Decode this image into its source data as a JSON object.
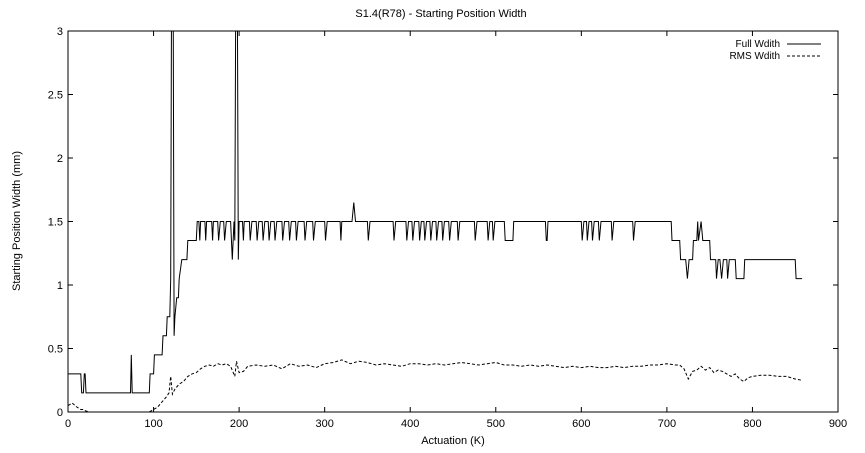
{
  "chart_data": {
    "type": "line",
    "title": "S1.4(R78) - Starting Position Width",
    "xlabel": "Actuation (K)",
    "ylabel": "Starting Position Width (mm)",
    "xlim": [
      0,
      900
    ],
    "ylim": [
      0,
      3
    ],
    "x_ticks": [
      0,
      100,
      200,
      300,
      400,
      500,
      600,
      700,
      800,
      900
    ],
    "y_ticks": [
      0,
      0.5,
      1,
      1.5,
      2,
      2.5,
      3
    ],
    "x_tick_labels": [
      "0",
      "100",
      "200",
      "300",
      "400",
      "500",
      "600",
      "700",
      "800",
      "900"
    ],
    "y_tick_labels": [
      "0",
      "0.5",
      "1",
      "1.5",
      "2",
      "2.5",
      "3"
    ],
    "grid": false,
    "legend_position": "top-right",
    "series": [
      {
        "name": "Full Wdith",
        "style": "solid",
        "color": "#000000",
        "points": [
          [
            0,
            0.3
          ],
          [
            15,
            0.3
          ],
          [
            16,
            0.15
          ],
          [
            18,
            0.15
          ],
          [
            19,
            0.3
          ],
          [
            20,
            0.3
          ],
          [
            21,
            0.15
          ],
          [
            73,
            0.15
          ],
          [
            74,
            0.45
          ],
          [
            75,
            0.15
          ],
          [
            95,
            0.15
          ],
          [
            96,
            0.3
          ],
          [
            100,
            0.3
          ],
          [
            101,
            0.45
          ],
          [
            110,
            0.45
          ],
          [
            111,
            0.6
          ],
          [
            115,
            0.6
          ],
          [
            116,
            0.75
          ],
          [
            119,
            0.75
          ],
          [
            120,
            1.05
          ],
          [
            121,
            3.2
          ],
          [
            123,
            3.2
          ],
          [
            124,
            0.6
          ],
          [
            125,
            0.75
          ],
          [
            127,
            0.9
          ],
          [
            129,
            0.9
          ],
          [
            130,
            1.05
          ],
          [
            133,
            1.2
          ],
          [
            139,
            1.2
          ],
          [
            140,
            1.35
          ],
          [
            150,
            1.35
          ],
          [
            151,
            1.5
          ],
          [
            153,
            1.5
          ],
          [
            154,
            1.35
          ],
          [
            155,
            1.5
          ],
          [
            160,
            1.5
          ],
          [
            161,
            1.35
          ],
          [
            162,
            1.5
          ],
          [
            168,
            1.5
          ],
          [
            169,
            1.35
          ],
          [
            170,
            1.5
          ],
          [
            175,
            1.5
          ],
          [
            176,
            1.35
          ],
          [
            178,
            1.5
          ],
          [
            182,
            1.5
          ],
          [
            183,
            1.35
          ],
          [
            185,
            1.5
          ],
          [
            190,
            1.5
          ],
          [
            192,
            1.2
          ],
          [
            194,
            1.5
          ],
          [
            195,
            1.35
          ],
          [
            196,
            3.2
          ],
          [
            198,
            3.2
          ],
          [
            199,
            1.2
          ],
          [
            200,
            1.5
          ],
          [
            204,
            1.5
          ],
          [
            205,
            1.35
          ],
          [
            206,
            1.5
          ],
          [
            212,
            1.5
          ],
          [
            213,
            1.35
          ],
          [
            215,
            1.5
          ],
          [
            220,
            1.5
          ],
          [
            221,
            1.35
          ],
          [
            223,
            1.5
          ],
          [
            227,
            1.5
          ],
          [
            228,
            1.35
          ],
          [
            230,
            1.5
          ],
          [
            234,
            1.5
          ],
          [
            235,
            1.35
          ],
          [
            237,
            1.5
          ],
          [
            241,
            1.5
          ],
          [
            242,
            1.35
          ],
          [
            244,
            1.5
          ],
          [
            250,
            1.5
          ],
          [
            251,
            1.35
          ],
          [
            253,
            1.5
          ],
          [
            258,
            1.5
          ],
          [
            259,
            1.35
          ],
          [
            261,
            1.5
          ],
          [
            266,
            1.5
          ],
          [
            267,
            1.35
          ],
          [
            269,
            1.5
          ],
          [
            276,
            1.5
          ],
          [
            277,
            1.35
          ],
          [
            279,
            1.5
          ],
          [
            286,
            1.5
          ],
          [
            287,
            1.35
          ],
          [
            289,
            1.5
          ],
          [
            300,
            1.5
          ],
          [
            301,
            1.35
          ],
          [
            303,
            1.5
          ],
          [
            318,
            1.5
          ],
          [
            319,
            1.35
          ],
          [
            320,
            1.5
          ],
          [
            330,
            1.5
          ],
          [
            332,
            1.5
          ],
          [
            334,
            1.65
          ],
          [
            336,
            1.5
          ],
          [
            350,
            1.5
          ],
          [
            351,
            1.35
          ],
          [
            353,
            1.5
          ],
          [
            380,
            1.5
          ],
          [
            381,
            1.35
          ],
          [
            383,
            1.5
          ],
          [
            395,
            1.5
          ],
          [
            396,
            1.35
          ],
          [
            398,
            1.5
          ],
          [
            402,
            1.5
          ],
          [
            403,
            1.35
          ],
          [
            405,
            1.5
          ],
          [
            410,
            1.5
          ],
          [
            411,
            1.35
          ],
          [
            413,
            1.5
          ],
          [
            416,
            1.5
          ],
          [
            417,
            1.35
          ],
          [
            419,
            1.5
          ],
          [
            423,
            1.5
          ],
          [
            424,
            1.35
          ],
          [
            426,
            1.5
          ],
          [
            430,
            1.5
          ],
          [
            431,
            1.35
          ],
          [
            433,
            1.5
          ],
          [
            437,
            1.5
          ],
          [
            438,
            1.35
          ],
          [
            440,
            1.5
          ],
          [
            445,
            1.5
          ],
          [
            446,
            1.35
          ],
          [
            448,
            1.5
          ],
          [
            455,
            1.5
          ],
          [
            456,
            1.35
          ],
          [
            458,
            1.5
          ],
          [
            475,
            1.5
          ],
          [
            476,
            1.35
          ],
          [
            478,
            1.5
          ],
          [
            490,
            1.5
          ],
          [
            491,
            1.35
          ],
          [
            493,
            1.5
          ],
          [
            496,
            1.5
          ],
          [
            497,
            1.35
          ],
          [
            499,
            1.5
          ],
          [
            510,
            1.5
          ],
          [
            511,
            1.35
          ],
          [
            520,
            1.35
          ],
          [
            521,
            1.5
          ],
          [
            558,
            1.5
          ],
          [
            559,
            1.35
          ],
          [
            560,
            1.35
          ],
          [
            561,
            1.5
          ],
          [
            600,
            1.5
          ],
          [
            601,
            1.35
          ],
          [
            603,
            1.5
          ],
          [
            606,
            1.5
          ],
          [
            607,
            1.35
          ],
          [
            609,
            1.5
          ],
          [
            612,
            1.5
          ],
          [
            613,
            1.35
          ],
          [
            615,
            1.5
          ],
          [
            620,
            1.5
          ],
          [
            621,
            1.35
          ],
          [
            623,
            1.5
          ],
          [
            635,
            1.5
          ],
          [
            636,
            1.35
          ],
          [
            638,
            1.5
          ],
          [
            660,
            1.5
          ],
          [
            661,
            1.35
          ],
          [
            663,
            1.5
          ],
          [
            705,
            1.5
          ],
          [
            706,
            1.35
          ],
          [
            715,
            1.35
          ],
          [
            716,
            1.2
          ],
          [
            722,
            1.2
          ],
          [
            724,
            1.05
          ],
          [
            726,
            1.2
          ],
          [
            730,
            1.2
          ],
          [
            731,
            1.35
          ],
          [
            735,
            1.35
          ],
          [
            736,
            1.5
          ],
          [
            737,
            1.35
          ],
          [
            740,
            1.5
          ],
          [
            742,
            1.35
          ],
          [
            750,
            1.35
          ],
          [
            751,
            1.2
          ],
          [
            755,
            1.2
          ],
          [
            757,
            1.2
          ],
          [
            758,
            1.05
          ],
          [
            760,
            1.2
          ],
          [
            762,
            1.2
          ],
          [
            764,
            1.05
          ],
          [
            766,
            1.2
          ],
          [
            770,
            1.2
          ],
          [
            771,
            1.05
          ],
          [
            773,
            1.2
          ],
          [
            780,
            1.2
          ],
          [
            781,
            1.05
          ],
          [
            790,
            1.05
          ],
          [
            791,
            1.2
          ],
          [
            850,
            1.2
          ],
          [
            851,
            1.05
          ],
          [
            858,
            1.05
          ]
        ]
      },
      {
        "name": "RMS Wdith",
        "style": "dashed",
        "color": "#000000",
        "points": [
          [
            0,
            0.05
          ],
          [
            5,
            0.07
          ],
          [
            10,
            0.04
          ],
          [
            15,
            0.02
          ],
          [
            18,
            0.02
          ],
          [
            20,
            0.01
          ],
          [
            25,
            0.0
          ],
          [
            80,
            0.0
          ],
          [
            95,
            0.0
          ],
          [
            100,
            0.02
          ],
          [
            105,
            0.04
          ],
          [
            110,
            0.08
          ],
          [
            115,
            0.12
          ],
          [
            118,
            0.15
          ],
          [
            120,
            0.28
          ],
          [
            122,
            0.14
          ],
          [
            125,
            0.18
          ],
          [
            130,
            0.22
          ],
          [
            135,
            0.24
          ],
          [
            140,
            0.28
          ],
          [
            145,
            0.3
          ],
          [
            150,
            0.31
          ],
          [
            155,
            0.34
          ],
          [
            160,
            0.36
          ],
          [
            165,
            0.37
          ],
          [
            170,
            0.36
          ],
          [
            175,
            0.38
          ],
          [
            180,
            0.37
          ],
          [
            185,
            0.38
          ],
          [
            190,
            0.36
          ],
          [
            195,
            0.28
          ],
          [
            197,
            0.4
          ],
          [
            200,
            0.31
          ],
          [
            205,
            0.32
          ],
          [
            210,
            0.36
          ],
          [
            220,
            0.37
          ],
          [
            230,
            0.36
          ],
          [
            240,
            0.37
          ],
          [
            250,
            0.34
          ],
          [
            260,
            0.38
          ],
          [
            270,
            0.36
          ],
          [
            280,
            0.37
          ],
          [
            290,
            0.35
          ],
          [
            300,
            0.38
          ],
          [
            310,
            0.39
          ],
          [
            320,
            0.41
          ],
          [
            330,
            0.38
          ],
          [
            340,
            0.4
          ],
          [
            350,
            0.39
          ],
          [
            360,
            0.37
          ],
          [
            370,
            0.38
          ],
          [
            380,
            0.37
          ],
          [
            390,
            0.36
          ],
          [
            400,
            0.38
          ],
          [
            410,
            0.38
          ],
          [
            420,
            0.37
          ],
          [
            430,
            0.38
          ],
          [
            440,
            0.37
          ],
          [
            450,
            0.38
          ],
          [
            460,
            0.39
          ],
          [
            470,
            0.38
          ],
          [
            480,
            0.37
          ],
          [
            490,
            0.38
          ],
          [
            500,
            0.39
          ],
          [
            510,
            0.37
          ],
          [
            520,
            0.37
          ],
          [
            530,
            0.36
          ],
          [
            540,
            0.37
          ],
          [
            550,
            0.36
          ],
          [
            560,
            0.37
          ],
          [
            570,
            0.36
          ],
          [
            580,
            0.35
          ],
          [
            590,
            0.36
          ],
          [
            600,
            0.35
          ],
          [
            610,
            0.36
          ],
          [
            620,
            0.35
          ],
          [
            630,
            0.35
          ],
          [
            640,
            0.36
          ],
          [
            650,
            0.35
          ],
          [
            660,
            0.36
          ],
          [
            670,
            0.36
          ],
          [
            680,
            0.37
          ],
          [
            690,
            0.37
          ],
          [
            700,
            0.38
          ],
          [
            710,
            0.37
          ],
          [
            715,
            0.37
          ],
          [
            720,
            0.34
          ],
          [
            725,
            0.26
          ],
          [
            730,
            0.32
          ],
          [
            735,
            0.33
          ],
          [
            740,
            0.36
          ],
          [
            745,
            0.33
          ],
          [
            750,
            0.35
          ],
          [
            755,
            0.31
          ],
          [
            760,
            0.33
          ],
          [
            765,
            0.32
          ],
          [
            770,
            0.3
          ],
          [
            775,
            0.28
          ],
          [
            780,
            0.3
          ],
          [
            785,
            0.26
          ],
          [
            790,
            0.24
          ],
          [
            795,
            0.27
          ],
          [
            800,
            0.28
          ],
          [
            810,
            0.29
          ],
          [
            820,
            0.29
          ],
          [
            830,
            0.28
          ],
          [
            840,
            0.28
          ],
          [
            850,
            0.26
          ],
          [
            858,
            0.25
          ]
        ]
      }
    ]
  }
}
